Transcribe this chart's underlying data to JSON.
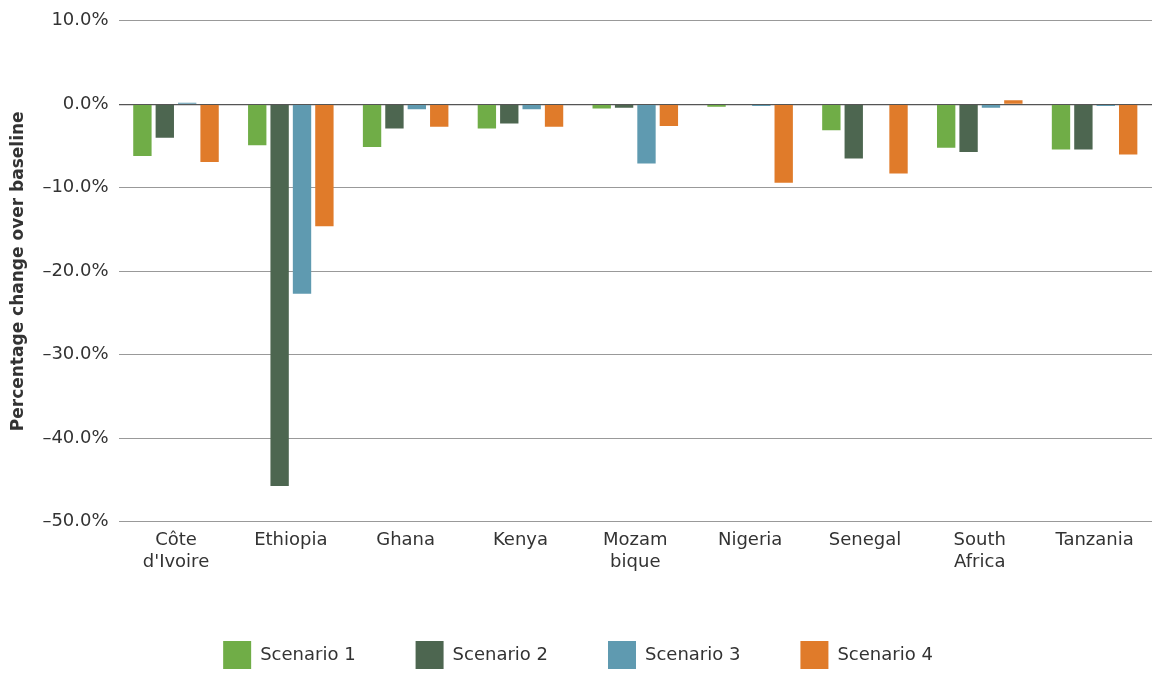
{
  "chart_data": {
    "type": "bar",
    "ylabel": "Percentage change over baseline",
    "categories": [
      "Côte d'Ivoire",
      "Ethiopia",
      "Ghana",
      "Kenya",
      "Mozam bique",
      "Nigeria",
      "Senegal",
      "South Africa",
      "Tanzania"
    ],
    "series": [
      {
        "name": "Scenario 1",
        "color": "#70ad47",
        "values": [
          -6.2,
          -4.9,
          -5.1,
          -2.9,
          -0.5,
          -0.3,
          -3.1,
          -5.2,
          -5.4
        ]
      },
      {
        "name": "Scenario 2",
        "color": "#4d6650",
        "values": [
          -4.0,
          -45.7,
          -2.9,
          -2.3,
          -0.4,
          0,
          -6.5,
          -5.7,
          -5.4
        ]
      },
      {
        "name": "Scenario 3",
        "color": "#5f9ab0",
        "values": [
          0.2,
          -22.7,
          -0.6,
          -0.6,
          -7.1,
          -0.2,
          0,
          -0.4,
          -0.2
        ]
      },
      {
        "name": "Scenario 4",
        "color": "#e07b2a",
        "values": [
          -6.9,
          -14.6,
          -2.7,
          -2.7,
          -2.6,
          -9.4,
          -8.3,
          0.5,
          -6.0
        ]
      }
    ],
    "ylim": [
      -50,
      10
    ],
    "yticks": [
      {
        "value": -50,
        "label": "–50.0%"
      },
      {
        "value": -40,
        "label": "–40.0%"
      },
      {
        "value": -30,
        "label": "–30.0%"
      },
      {
        "value": -20,
        "label": "–20.0%"
      },
      {
        "value": -10,
        "label": "–10.0%"
      },
      {
        "value": 0,
        "label": "0.0%"
      },
      {
        "value": 10,
        "label": "10.0%"
      }
    ],
    "grid": "y",
    "legend": "bottom"
  }
}
